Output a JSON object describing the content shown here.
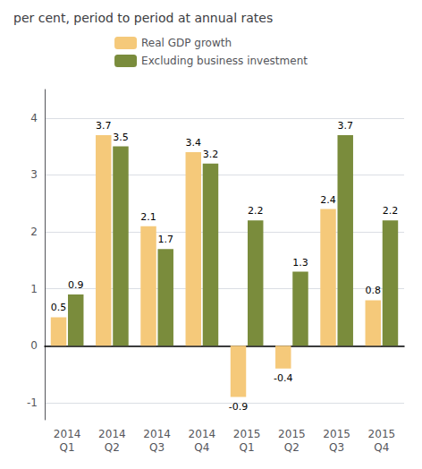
{
  "chart_data": {
    "type": "bar",
    "title": "per cent, period to period at annual rates",
    "categories": [
      "2014\nQ1",
      "2014\nQ2",
      "2014\nQ3",
      "2014\nQ4",
      "2015\nQ1",
      "2015\nQ2",
      "2015\nQ3",
      "2015\nQ4"
    ],
    "series": [
      {
        "name": "Real GDP growth",
        "color": "#F5C97A",
        "values": [
          0.5,
          3.7,
          2.1,
          3.4,
          -0.9,
          -0.4,
          2.4,
          0.8
        ]
      },
      {
        "name": "Excluding business investment",
        "color": "#7A8C3C",
        "values": [
          0.9,
          3.5,
          1.7,
          3.2,
          2.2,
          1.3,
          3.7,
          2.2
        ]
      }
    ],
    "ylim": [
      -1.3,
      4.5
    ],
    "yticks": [
      -1,
      0,
      1,
      2,
      3,
      4
    ],
    "grid": true,
    "legend": "top",
    "data_labels": true
  }
}
